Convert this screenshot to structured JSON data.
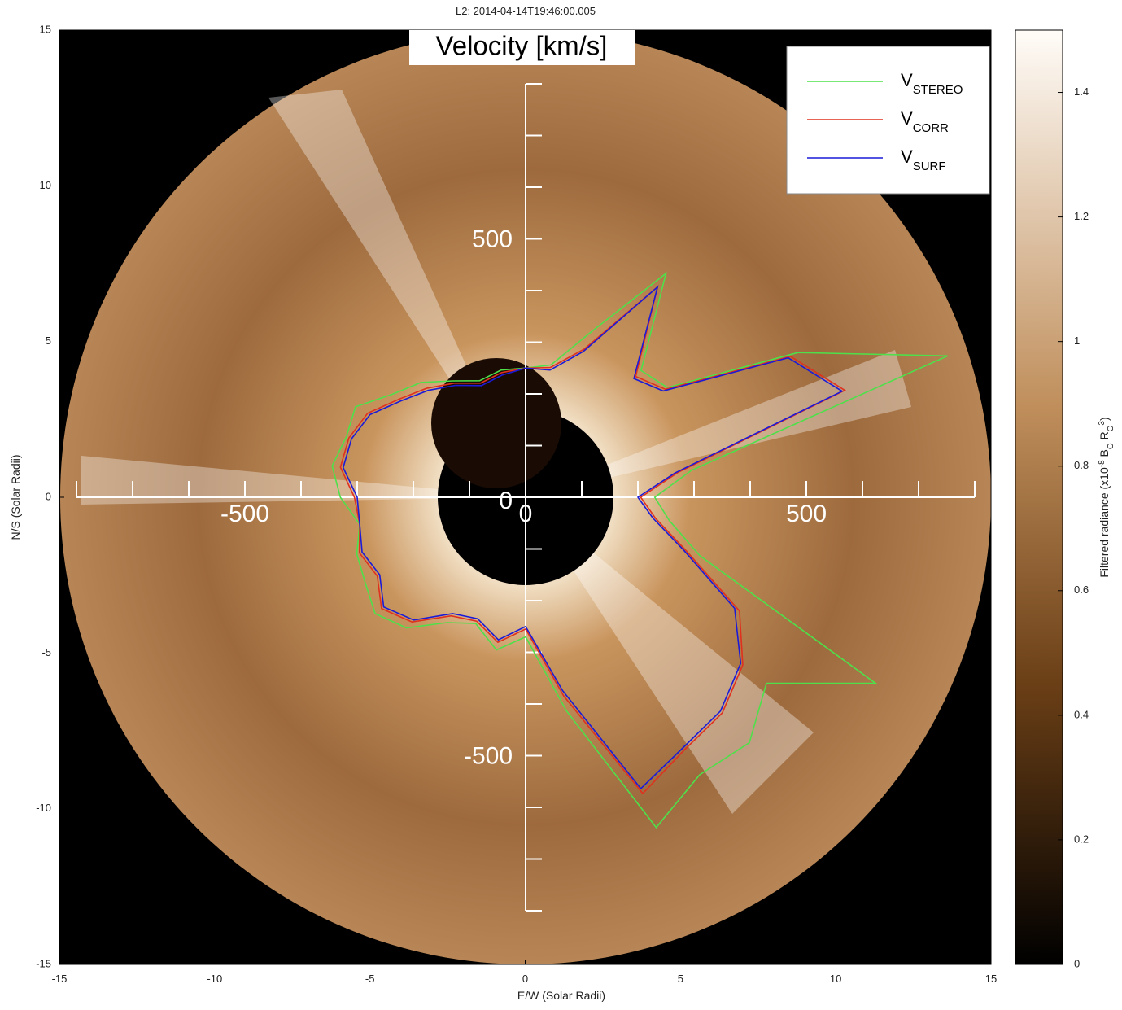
{
  "chart_data": {
    "type": "polar-overlay",
    "header": "L2: 2014-04-14T19:46:00.005",
    "title": "Velocity [km/s]",
    "x_label": "E/W (Solar Radii)",
    "y_label": "N/S (Solar Radii)",
    "xlim": [
      -15,
      15
    ],
    "ylim": [
      -15,
      15
    ],
    "xticks": [
      -15,
      -10,
      -5,
      0,
      5,
      10,
      15
    ],
    "yticks": [
      -15,
      -10,
      -5,
      0,
      5,
      10,
      15
    ],
    "colorbar": {
      "lim": [
        0,
        1.5
      ],
      "ticks": [
        0,
        0.2,
        0.4,
        0.6,
        0.8,
        1,
        1.2,
        1.4
      ],
      "label": [
        {
          "text": "Filtered radiance (x10"
        },
        {
          "text": "-8",
          "sup": true
        },
        {
          "text": " B"
        },
        {
          "text": "O",
          "sub": true
        },
        {
          "text": " R"
        },
        {
          "text": "O",
          "sub": true
        },
        {
          "text": "3",
          "sup": true
        },
        {
          "text": ")"
        }
      ]
    },
    "velocity_xlim": [
      -800,
      800
    ],
    "velocity_ylim": [
      -800,
      800
    ],
    "velocity_ticks": [
      -500,
      0,
      500
    ],
    "velocity_minor_ticks": [
      -800,
      -700,
      -600,
      -500,
      -400,
      -300,
      -200,
      -100,
      0,
      100,
      200,
      300,
      400,
      500,
      600,
      700,
      800
    ],
    "angles": [
      0,
      10,
      20,
      30,
      40,
      50,
      60,
      70,
      80,
      90,
      100,
      110,
      120,
      130,
      140,
      150,
      160,
      170,
      180,
      190,
      200,
      210,
      220,
      230,
      240,
      250,
      260,
      270,
      280,
      290,
      300,
      310,
      320,
      330,
      340,
      350
    ],
    "series": [
      {
        "name": "V",
        "subscript": "STEREO",
        "color": "#4ee04a",
        "values": [
          230,
          300,
          800,
          560,
          330,
          320,
          500,
          340,
          260,
          250,
          250,
          240,
          260,
          290,
          310,
          350,
          340,
          350,
          330,
          300,
          320,
          330,
          350,
          330,
          280,
          260,
          300,
          270,
          420,
          680,
          620,
          620,
          560,
          720,
          330,
          260
        ]
      },
      {
        "name": "V",
        "subscript": "CORR",
        "color": "#e0301e",
        "values": [
          205,
          275,
          605,
          545,
          325,
          305,
          470,
          305,
          255,
          250,
          245,
          235,
          255,
          275,
          295,
          325,
          335,
          335,
          305,
          300,
          315,
          305,
          335,
          315,
          265,
          255,
          285,
          255,
          390,
          610,
          565,
          545,
          505,
          440,
          305,
          235
        ]
      },
      {
        "name": "V",
        "subscript": "SURF",
        "color": "#1a1ad8",
        "values": [
          200,
          270,
          600,
          540,
          320,
          300,
          470,
          300,
          250,
          250,
          240,
          230,
          250,
          270,
          290,
          320,
          330,
          330,
          300,
          300,
          310,
          300,
          330,
          310,
          260,
          250,
          280,
          250,
          380,
          600,
          560,
          540,
          500,
          430,
          300,
          230
        ]
      }
    ]
  }
}
